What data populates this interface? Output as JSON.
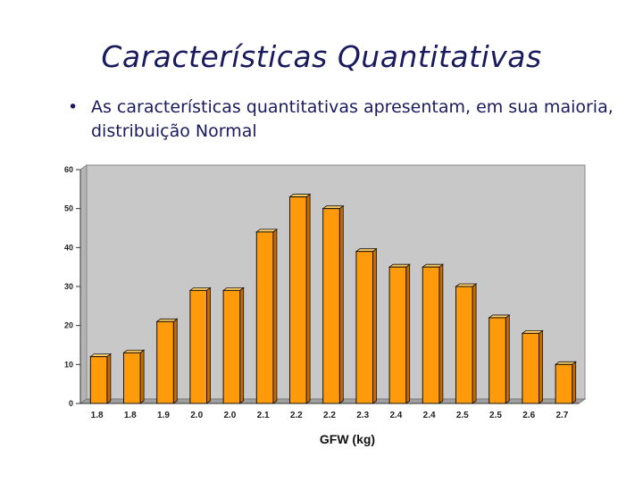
{
  "slide": {
    "title": "Características Quantitativas",
    "bullet_marker": "•",
    "bullet_text": "As características quantitativas apresentam, em sua maioria, distribuição Normal"
  },
  "chart_data": {
    "type": "bar",
    "categories": [
      "1.8",
      "1.8",
      "1.9",
      "2.0",
      "2.0",
      "2.1",
      "2.2",
      "2.2",
      "2.3",
      "2.4",
      "2.4",
      "2.5",
      "2.5",
      "2.6",
      "2.7"
    ],
    "values": [
      12,
      13,
      21,
      29,
      29,
      44,
      53,
      50,
      39,
      35,
      35,
      30,
      22,
      18,
      10
    ],
    "yticks": [
      "0",
      "10",
      "20",
      "30",
      "40",
      "50",
      "60"
    ],
    "title": "",
    "xlabel": "GFW (kg)",
    "ylabel": "",
    "ylim": [
      0,
      60
    ],
    "grid": false,
    "colors": {
      "bar_front": "#ff9a0a",
      "bar_side": "#c76a00",
      "bar_top": "#ffcc66",
      "wall": "#c8c8c8",
      "floor": "#a0a0a0",
      "outline": "#111111"
    }
  }
}
